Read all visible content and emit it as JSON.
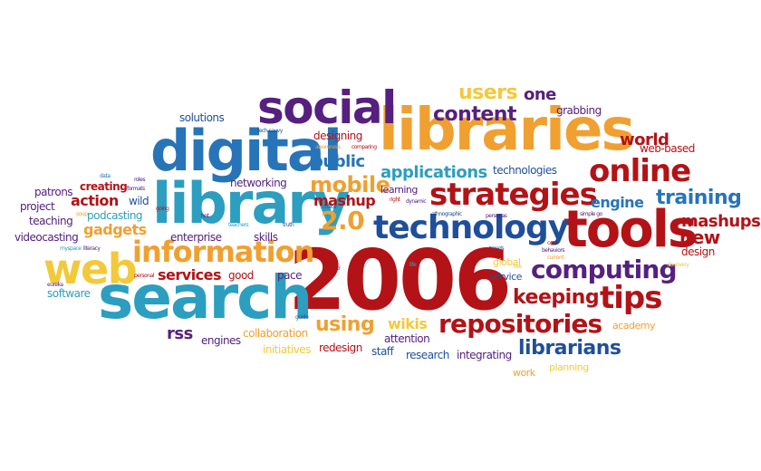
{
  "words": {
    "w2006": "2006",
    "search": "search",
    "library": "library",
    "libraries": "libraries",
    "digital": "digital",
    "tools": "tools",
    "social": "social",
    "web": "web",
    "technology": "technology",
    "strategies": "strategies",
    "online": "online",
    "information": "information",
    "computing": "computing",
    "repositories": "repositories",
    "tips": "tips",
    "keeping": "keeping",
    "v20": "2.0",
    "mobile": "mobile",
    "content": "content",
    "users": "users",
    "librarians": "librarians",
    "training": "training",
    "mashup": "mashup",
    "mashups": "mashups",
    "public": "public",
    "applications": "applications",
    "world": "world",
    "new": "new",
    "engine": "engine",
    "using": "using",
    "one": "one",
    "design": "design",
    "services": "services",
    "gadgets": "gadgets",
    "action": "action",
    "rss": "rss",
    "wikis": "wikis",
    "creating": "creating",
    "designing": "designing",
    "networking": "networking",
    "solutions": "solutions",
    "grabbing": "grabbing",
    "web_based": "web-based",
    "technologies": "technologies",
    "patrons": "patrons",
    "project": "project",
    "teaching": "teaching",
    "videocasting": "videocasting",
    "podcasting": "podcasting",
    "wild": "wild",
    "enterprise": "enterprise",
    "skills": "skills",
    "good": "good",
    "pace": "pace",
    "software": "software",
    "engines": "engines",
    "collaboration": "collaboration",
    "initiatives": "initiatives",
    "redesign": "redesign",
    "attention": "attention",
    "staff": "staff",
    "research": "research",
    "integrating": "integrating",
    "work": "work",
    "planning": "planning",
    "academy": "academy",
    "service": "service",
    "global": "global",
    "learning": "learning",
    "data": "data",
    "roles": "roles",
    "formats": "formats",
    "soup": "soup",
    "going": "going",
    "hot": "hot",
    "teachers": "teachers",
    "truth": "truth",
    "chaos": "chaos",
    "right": "right",
    "dynamic": "dynamic",
    "ethnographic": "ethnographic",
    "personas": "personas",
    "trends": "trends",
    "flickr": "flickr",
    "life": "life",
    "guide": "guide",
    "personal": "personal",
    "myspace": "myspace",
    "literacy": "literacy",
    "eureka": "eureka",
    "tech_savvy": "tech-savvy",
    "awareness": "awareness",
    "comparing": "comparing",
    "simple_go": "simple go",
    "cool": "cool",
    "behaviors": "behaviors",
    "free": "free",
    "current": "current",
    "discovery": "discovery"
  }
}
